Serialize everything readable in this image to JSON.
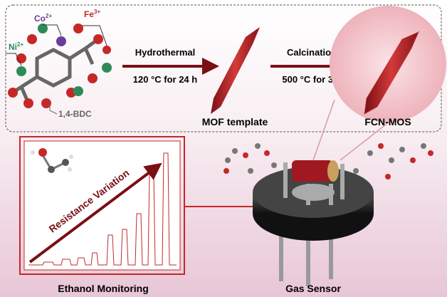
{
  "ions": [
    {
      "symbol": "Co",
      "charge": "2+"
    },
    {
      "symbol": "Fe",
      "charge": "3+"
    },
    {
      "symbol": "Ni",
      "charge": "2+"
    }
  ],
  "linker": "1,4-BDC",
  "steps": [
    {
      "name": "Hydrothermal",
      "condition": "120 °C for 24 h"
    },
    {
      "name": "Calcination",
      "condition": "500 °C for 3 h"
    }
  ],
  "products": [
    "MOF template",
    "FCN-MOS"
  ],
  "panel_label": "Resistance Variation",
  "captions": [
    "Ethanol Monitoring",
    "Gas Sensor"
  ]
}
